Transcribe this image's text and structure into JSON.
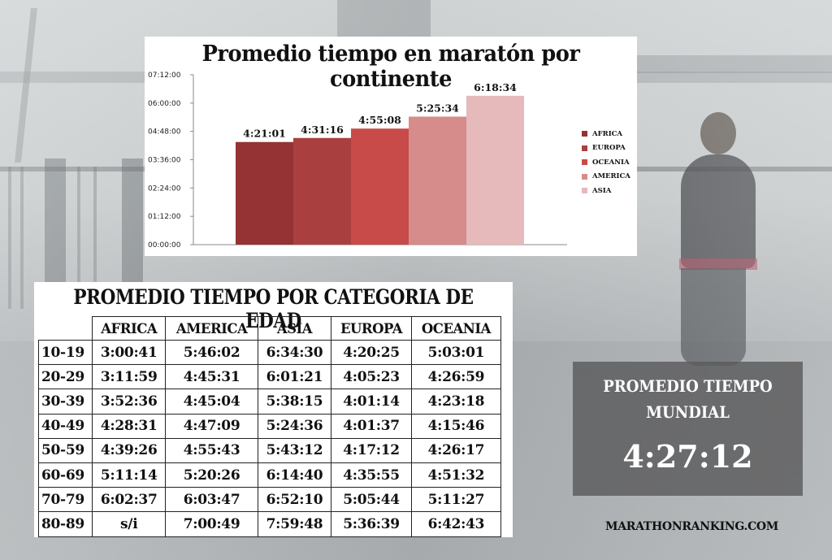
{
  "chart_data": [
    {
      "type": "bar",
      "title": "Promedio tiempo en maratón por continente",
      "categories": [
        "AFRICA",
        "EUROPA",
        "OCEANIA",
        "AMERICA",
        "ASIA"
      ],
      "values": [
        15661,
        16276,
        17708,
        19534,
        22714
      ],
      "value_labels": [
        "4:21:01",
        "4:31:16",
        "4:55:08",
        "5:25:34",
        "6:18:34"
      ],
      "colors": [
        "#943234",
        "#a9403f",
        "#c84a49",
        "#d58c8b",
        "#e6b9bb"
      ],
      "ylim": [
        0,
        25920
      ],
      "yticks": [
        0,
        4320,
        8640,
        12960,
        17280,
        21600,
        25920
      ],
      "ytick_labels": [
        "00:00:00",
        "01:12:00",
        "02:24:00",
        "03:36:00",
        "04:48:00",
        "06:00:00",
        "07:12:00"
      ],
      "legend": {
        "position": "right",
        "entries": [
          "AFRICA",
          "EUROPA",
          "OCEANIA",
          "AMERICA",
          "ASIA"
        ]
      },
      "grid": false
    },
    {
      "type": "table",
      "title": "PROMEDIO TIEMPO POR CATEGORIA DE EDAD",
      "columns": [
        "AFRICA",
        "AMERICA",
        "ASIA",
        "EUROPA",
        "OCEANIA"
      ],
      "rows": [
        {
          "category": "10-19",
          "values": [
            "3:00:41",
            "5:46:02",
            "6:34:30",
            "4:20:25",
            "5:03:01"
          ]
        },
        {
          "category": "20-29",
          "values": [
            "3:11:59",
            "4:45:31",
            "6:01:21",
            "4:05:23",
            "4:26:59"
          ]
        },
        {
          "category": "30-39",
          "values": [
            "3:52:36",
            "4:45:04",
            "5:38:15",
            "4:01:14",
            "4:23:18"
          ]
        },
        {
          "category": "40-49",
          "values": [
            "4:28:31",
            "4:47:09",
            "5:24:36",
            "4:01:37",
            "4:15:46"
          ]
        },
        {
          "category": "50-59",
          "values": [
            "4:39:26",
            "4:55:43",
            "5:43:12",
            "4:17:12",
            "4:26:17"
          ]
        },
        {
          "category": "60-69",
          "values": [
            "5:11:14",
            "5:20:26",
            "6:14:40",
            "4:35:55",
            "4:51:32"
          ]
        },
        {
          "category": "70-79",
          "values": [
            "6:02:37",
            "6:03:47",
            "6:52:10",
            "5:05:44",
            "5:11:27"
          ]
        },
        {
          "category": "80-89",
          "values": [
            "s/i",
            "7:00:49",
            "7:59:48",
            "5:36:39",
            "6:42:43"
          ]
        }
      ]
    }
  ],
  "world": {
    "line1": "PROMEDIO TIEMPO",
    "line2": "MUNDIAL",
    "value": "4:27:12"
  },
  "site": "MARATHONRANKING.COM"
}
